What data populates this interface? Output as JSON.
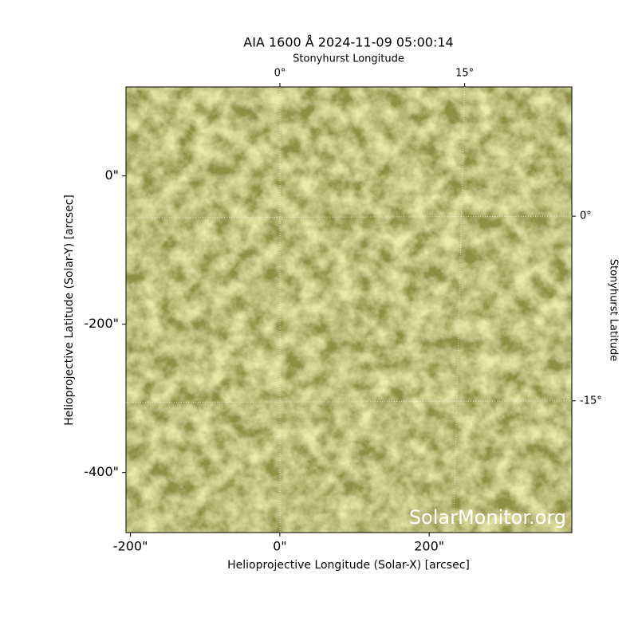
{
  "chart_data": {
    "type": "image",
    "title": "AIA 1600 Å 2024-11-09 05:00:14",
    "xlabel": "Helioprojective Longitude (Solar-X) [arcsec]",
    "ylabel": "Helioprojective Latitude (Solar-Y) [arcsec]",
    "x2label": "Stonyhurst Longitude",
    "y2label": "Stonyhurst Latitude",
    "watermark": "SolarMonitor.org",
    "xlim": [
      -206,
      391
    ],
    "ylim": [
      -481,
      120
    ],
    "xticks": [
      {
        "value": -200,
        "label": "-200\""
      },
      {
        "value": 0,
        "label": "0\""
      },
      {
        "value": 200,
        "label": "200\""
      }
    ],
    "yticks": [
      {
        "value": 0,
        "label": "0\""
      },
      {
        "value": -200,
        "label": "-200\""
      },
      {
        "value": -400,
        "label": "-400\""
      }
    ],
    "x2lim": [
      -12.5,
      23.7
    ],
    "y2lim": [
      -25.7,
      10.5
    ],
    "x2ticks": [
      {
        "value": 0,
        "label": "0°"
      },
      {
        "value": 15,
        "label": "15°"
      }
    ],
    "y2ticks": [
      {
        "value": 0,
        "label": "0°"
      },
      {
        "value": -15,
        "label": "-15°"
      }
    ],
    "grid": true
  }
}
